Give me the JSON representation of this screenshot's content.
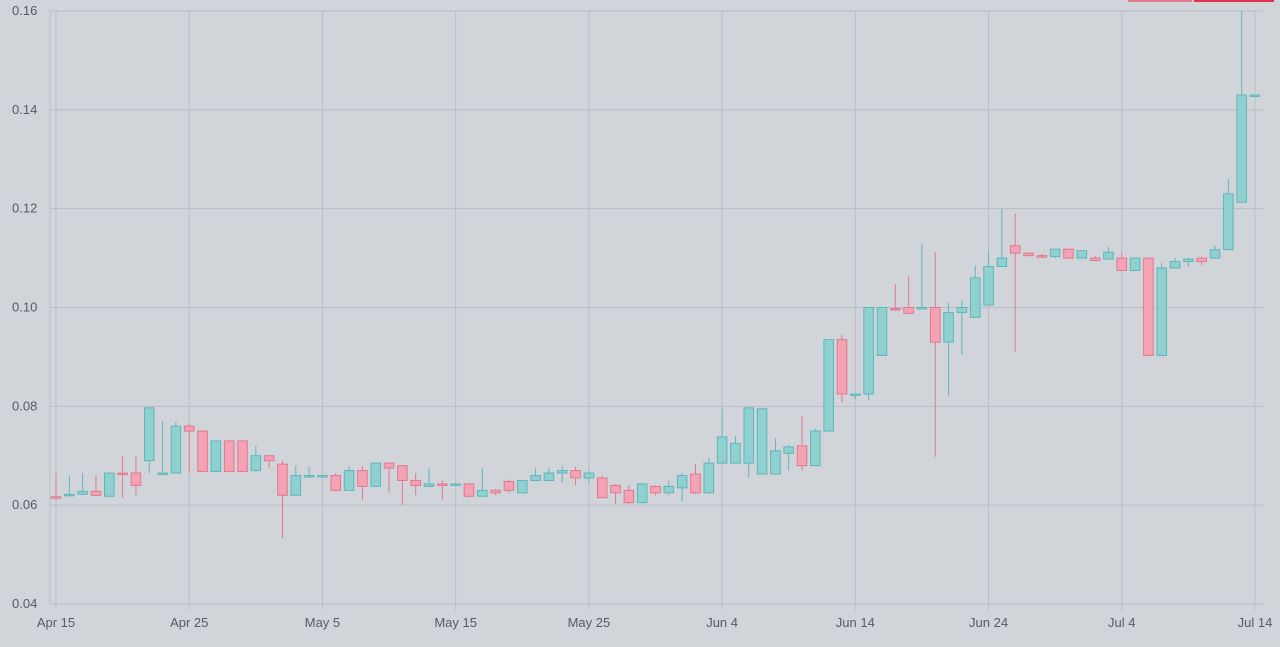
{
  "chart_data": {
    "type": "candlestick",
    "title": "",
    "xlabel": "",
    "ylabel": "",
    "ylim": [
      0.04,
      0.16
    ],
    "y_ticks": [
      "0.16",
      "0.14",
      "0.12",
      "0.10",
      "0.08",
      "0.06",
      "0.04"
    ],
    "x_ticks": [
      "Apr 15",
      "Apr 25",
      "May 5",
      "May 15",
      "May 25",
      "Jun 4",
      "Jun 14",
      "Jun 24",
      "Jul 4",
      "Jul 14"
    ],
    "x_range": [
      "Apr 15",
      "Jul 14"
    ],
    "grid": true,
    "colors": {
      "up": "#8fd0d1",
      "up_edge": "#5fb7b9",
      "down": "#f4a3b4",
      "down_edge": "#e17890",
      "grid": "#b8bec6",
      "text": "#555b63"
    },
    "candles": [
      {
        "date": "Apr 15",
        "open": 0.0617,
        "high": 0.0665,
        "low": 0.0615,
        "close": 0.0615
      },
      {
        "date": "Apr 16",
        "open": 0.062,
        "high": 0.066,
        "low": 0.0618,
        "close": 0.0622
      },
      {
        "date": "Apr 17",
        "open": 0.0622,
        "high": 0.0665,
        "low": 0.062,
        "close": 0.0628
      },
      {
        "date": "Apr 18",
        "open": 0.0628,
        "high": 0.066,
        "low": 0.0618,
        "close": 0.062
      },
      {
        "date": "Apr 19",
        "open": 0.0618,
        "high": 0.0665,
        "low": 0.0615,
        "close": 0.0665
      },
      {
        "date": "Apr 20",
        "open": 0.0665,
        "high": 0.07,
        "low": 0.0615,
        "close": 0.0663
      },
      {
        "date": "Apr 21",
        "open": 0.0665,
        "high": 0.07,
        "low": 0.062,
        "close": 0.064
      },
      {
        "date": "Apr 22",
        "open": 0.069,
        "high": 0.0797,
        "low": 0.0665,
        "close": 0.0797
      },
      {
        "date": "Apr 23",
        "open": 0.0665,
        "high": 0.077,
        "low": 0.0665,
        "close": 0.0665
      },
      {
        "date": "Apr 24",
        "open": 0.0665,
        "high": 0.0768,
        "low": 0.0665,
        "close": 0.076
      },
      {
        "date": "Apr 25",
        "open": 0.076,
        "high": 0.0765,
        "low": 0.0665,
        "close": 0.075
      },
      {
        "date": "Apr 26",
        "open": 0.075,
        "high": 0.075,
        "low": 0.0668,
        "close": 0.0668
      },
      {
        "date": "Apr 27",
        "open": 0.0668,
        "high": 0.073,
        "low": 0.0668,
        "close": 0.073
      },
      {
        "date": "Apr 28",
        "open": 0.073,
        "high": 0.073,
        "low": 0.0668,
        "close": 0.0668
      },
      {
        "date": "Apr 29",
        "open": 0.073,
        "high": 0.073,
        "low": 0.0668,
        "close": 0.0668
      },
      {
        "date": "Apr 30",
        "open": 0.067,
        "high": 0.072,
        "low": 0.0668,
        "close": 0.07
      },
      {
        "date": "May 1",
        "open": 0.07,
        "high": 0.07,
        "low": 0.0675,
        "close": 0.069
      },
      {
        "date": "May 2",
        "open": 0.0683,
        "high": 0.069,
        "low": 0.0533,
        "close": 0.062
      },
      {
        "date": "May 3",
        "open": 0.062,
        "high": 0.068,
        "low": 0.062,
        "close": 0.066
      },
      {
        "date": "May 4",
        "open": 0.066,
        "high": 0.0678,
        "low": 0.0655,
        "close": 0.066
      },
      {
        "date": "May 5",
        "open": 0.066,
        "high": 0.066,
        "low": 0.066,
        "close": 0.066
      },
      {
        "date": "May 6",
        "open": 0.066,
        "high": 0.0665,
        "low": 0.0628,
        "close": 0.063
      },
      {
        "date": "May 7",
        "open": 0.063,
        "high": 0.068,
        "low": 0.063,
        "close": 0.067
      },
      {
        "date": "May 8",
        "open": 0.067,
        "high": 0.068,
        "low": 0.061,
        "close": 0.0638
      },
      {
        "date": "May 9",
        "open": 0.0638,
        "high": 0.0685,
        "low": 0.0638,
        "close": 0.0685
      },
      {
        "date": "May 10",
        "open": 0.0685,
        "high": 0.0685,
        "low": 0.0625,
        "close": 0.0675
      },
      {
        "date": "May 11",
        "open": 0.068,
        "high": 0.068,
        "low": 0.06,
        "close": 0.065
      },
      {
        "date": "May 12",
        "open": 0.065,
        "high": 0.0665,
        "low": 0.062,
        "close": 0.064
      },
      {
        "date": "May 13",
        "open": 0.0638,
        "high": 0.0675,
        "low": 0.0638,
        "close": 0.0643
      },
      {
        "date": "May 14",
        "open": 0.0643,
        "high": 0.065,
        "low": 0.061,
        "close": 0.064
      },
      {
        "date": "May 15",
        "open": 0.064,
        "high": 0.0645,
        "low": 0.0638,
        "close": 0.0643
      },
      {
        "date": "May 16",
        "open": 0.0643,
        "high": 0.0645,
        "low": 0.0615,
        "close": 0.0618
      },
      {
        "date": "May 17",
        "open": 0.0618,
        "high": 0.0675,
        "low": 0.0618,
        "close": 0.063
      },
      {
        "date": "May 18",
        "open": 0.063,
        "high": 0.0632,
        "low": 0.062,
        "close": 0.0625
      },
      {
        "date": "May 19",
        "open": 0.0648,
        "high": 0.0652,
        "low": 0.0625,
        "close": 0.063
      },
      {
        "date": "May 20",
        "open": 0.0625,
        "high": 0.065,
        "low": 0.0625,
        "close": 0.065
      },
      {
        "date": "May 21",
        "open": 0.065,
        "high": 0.0675,
        "low": 0.0648,
        "close": 0.066
      },
      {
        "date": "May 22",
        "open": 0.065,
        "high": 0.0675,
        "low": 0.0648,
        "close": 0.0665
      },
      {
        "date": "May 23",
        "open": 0.0665,
        "high": 0.068,
        "low": 0.0645,
        "close": 0.067
      },
      {
        "date": "May 24",
        "open": 0.067,
        "high": 0.0678,
        "low": 0.064,
        "close": 0.0655
      },
      {
        "date": "May 25",
        "open": 0.0655,
        "high": 0.067,
        "low": 0.0645,
        "close": 0.0665
      },
      {
        "date": "May 26",
        "open": 0.0655,
        "high": 0.066,
        "low": 0.0615,
        "close": 0.0615
      },
      {
        "date": "May 27",
        "open": 0.064,
        "high": 0.0642,
        "low": 0.0603,
        "close": 0.0625
      },
      {
        "date": "May 28",
        "open": 0.063,
        "high": 0.064,
        "low": 0.0603,
        "close": 0.0605
      },
      {
        "date": "May 29",
        "open": 0.0605,
        "high": 0.0645,
        "low": 0.0605,
        "close": 0.0643
      },
      {
        "date": "May 30",
        "open": 0.0638,
        "high": 0.064,
        "low": 0.062,
        "close": 0.0625
      },
      {
        "date": "May 31",
        "open": 0.0625,
        "high": 0.065,
        "low": 0.062,
        "close": 0.0638
      },
      {
        "date": "Jun 1",
        "open": 0.0635,
        "high": 0.0665,
        "low": 0.0608,
        "close": 0.066
      },
      {
        "date": "Jun 2",
        "open": 0.0663,
        "high": 0.0683,
        "low": 0.0623,
        "close": 0.0625
      },
      {
        "date": "Jun 3",
        "open": 0.0625,
        "high": 0.0695,
        "low": 0.0625,
        "close": 0.0685
      },
      {
        "date": "Jun 4",
        "open": 0.0685,
        "high": 0.0795,
        "low": 0.0685,
        "close": 0.0738
      },
      {
        "date": "Jun 5",
        "open": 0.0685,
        "high": 0.074,
        "low": 0.0685,
        "close": 0.0725
      },
      {
        "date": "Jun 6",
        "open": 0.0685,
        "high": 0.0797,
        "low": 0.0655,
        "close": 0.0797
      },
      {
        "date": "Jun 7",
        "open": 0.0663,
        "high": 0.0797,
        "low": 0.0663,
        "close": 0.0795
      },
      {
        "date": "Jun 8",
        "open": 0.0663,
        "high": 0.0735,
        "low": 0.0663,
        "close": 0.071
      },
      {
        "date": "Jun 9",
        "open": 0.0705,
        "high": 0.0722,
        "low": 0.067,
        "close": 0.0718
      },
      {
        "date": "Jun 10",
        "open": 0.072,
        "high": 0.078,
        "low": 0.067,
        "close": 0.068
      },
      {
        "date": "Jun 11",
        "open": 0.068,
        "high": 0.0755,
        "low": 0.068,
        "close": 0.075
      },
      {
        "date": "Jun 12",
        "open": 0.075,
        "high": 0.0935,
        "low": 0.075,
        "close": 0.0935
      },
      {
        "date": "Jun 13",
        "open": 0.0935,
        "high": 0.0945,
        "low": 0.0808,
        "close": 0.0825
      },
      {
        "date": "Jun 14",
        "open": 0.0825,
        "high": 0.0825,
        "low": 0.0815,
        "close": 0.0825
      },
      {
        "date": "Jun 15",
        "open": 0.0825,
        "high": 0.1,
        "low": 0.0812,
        "close": 0.1
      },
      {
        "date": "Jun 16",
        "open": 0.0903,
        "high": 0.1,
        "low": 0.0903,
        "close": 0.1
      },
      {
        "date": "Jun 17",
        "open": 0.0998,
        "high": 0.1048,
        "low": 0.0993,
        "close": 0.0995
      },
      {
        "date": "Jun 18",
        "open": 0.1,
        "high": 0.1063,
        "low": 0.0988,
        "close": 0.0988
      },
      {
        "date": "Jun 19",
        "open": 0.0998,
        "high": 0.113,
        "low": 0.0998,
        "close": 0.1
      },
      {
        "date": "Jun 20",
        "open": 0.1,
        "high": 0.1112,
        "low": 0.0698,
        "close": 0.093
      },
      {
        "date": "Jun 21",
        "open": 0.093,
        "high": 0.101,
        "low": 0.082,
        "close": 0.099
      },
      {
        "date": "Jun 22",
        "open": 0.099,
        "high": 0.1015,
        "low": 0.0905,
        "close": 0.1
      },
      {
        "date": "Jun 23",
        "open": 0.098,
        "high": 0.1085,
        "low": 0.098,
        "close": 0.106
      },
      {
        "date": "Jun 24",
        "open": 0.1005,
        "high": 0.1115,
        "low": 0.1005,
        "close": 0.1083
      },
      {
        "date": "Jun 25",
        "open": 0.1083,
        "high": 0.12,
        "low": 0.1083,
        "close": 0.11
      },
      {
        "date": "Jun 26",
        "open": 0.1125,
        "high": 0.119,
        "low": 0.091,
        "close": 0.111
      },
      {
        "date": "Jun 27",
        "open": 0.111,
        "high": 0.1112,
        "low": 0.1103,
        "close": 0.1105
      },
      {
        "date": "Jun 28",
        "open": 0.1105,
        "high": 0.1108,
        "low": 0.11,
        "close": 0.1103
      },
      {
        "date": "Jun 29",
        "open": 0.1103,
        "high": 0.1118,
        "low": 0.11,
        "close": 0.1118
      },
      {
        "date": "Jun 30",
        "open": 0.1118,
        "high": 0.1118,
        "low": 0.1098,
        "close": 0.11
      },
      {
        "date": "Jul 1",
        "open": 0.11,
        "high": 0.1115,
        "low": 0.11,
        "close": 0.1115
      },
      {
        "date": "Jul 2",
        "open": 0.11,
        "high": 0.1105,
        "low": 0.1095,
        "close": 0.1095
      },
      {
        "date": "Jul 3",
        "open": 0.1098,
        "high": 0.1122,
        "low": 0.1098,
        "close": 0.1112
      },
      {
        "date": "Jul 4",
        "open": 0.11,
        "high": 0.111,
        "low": 0.1075,
        "close": 0.1075
      },
      {
        "date": "Jul 5",
        "open": 0.1075,
        "high": 0.11,
        "low": 0.1075,
        "close": 0.11
      },
      {
        "date": "Jul 6",
        "open": 0.11,
        "high": 0.11,
        "low": 0.0903,
        "close": 0.0903
      },
      {
        "date": "Jul 7",
        "open": 0.0903,
        "high": 0.109,
        "low": 0.0903,
        "close": 0.108
      },
      {
        "date": "Jul 8",
        "open": 0.108,
        "high": 0.11,
        "low": 0.108,
        "close": 0.1093
      },
      {
        "date": "Jul 9",
        "open": 0.1093,
        "high": 0.11,
        "low": 0.1083,
        "close": 0.1098
      },
      {
        "date": "Jul 10",
        "open": 0.11,
        "high": 0.1103,
        "low": 0.1085,
        "close": 0.1093
      },
      {
        "date": "Jul 11",
        "open": 0.11,
        "high": 0.1125,
        "low": 0.11,
        "close": 0.1117
      },
      {
        "date": "Jul 12",
        "open": 0.1117,
        "high": 0.126,
        "low": 0.1117,
        "close": 0.123
      },
      {
        "date": "Jul 13",
        "open": 0.1213,
        "high": 0.16,
        "low": 0.1213,
        "close": 0.143
      },
      {
        "date": "Jul 14",
        "open": 0.143,
        "high": 0.143,
        "low": 0.143,
        "close": 0.143
      }
    ]
  }
}
